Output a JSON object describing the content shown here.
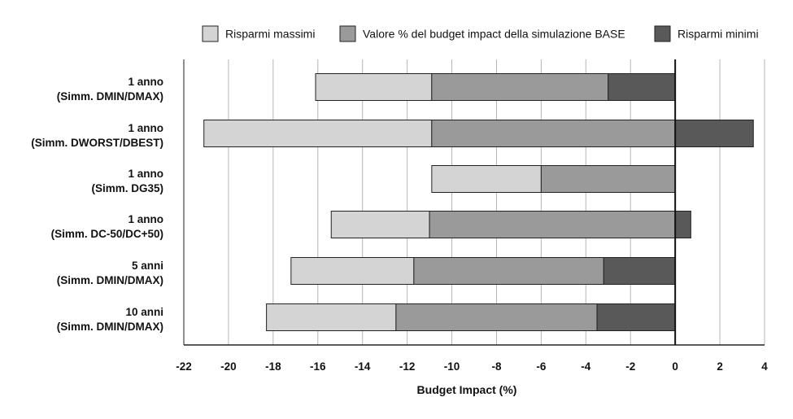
{
  "chart_data": {
    "type": "bar",
    "orientation": "horizontal",
    "stacked": true,
    "title": "",
    "xlabel": "Budget Impact (%)",
    "ylabel": "",
    "xlim": [
      -22,
      4
    ],
    "xticks": [
      -22,
      -20,
      -18,
      -16,
      -14,
      -12,
      -10,
      -8,
      -6,
      -4,
      -2,
      0,
      2,
      4
    ],
    "grid": true,
    "legend_position": "top",
    "categories": [
      [
        "1 anno",
        "(Simm. DMIN/DMAX)"
      ],
      [
        "1 anno",
        "(Simm. DWORST/DBEST)"
      ],
      [
        "1 anno",
        "(Simm. DG35)"
      ],
      [
        "1 anno",
        "(Simm. DC-50/DC+50)"
      ],
      [
        "5 anni",
        "(Simm. DMIN/DMAX)"
      ],
      [
        "10 anni",
        "(Simm. DMIN/DMAX)"
      ]
    ],
    "series": [
      {
        "name": "Risparmi massimi",
        "color": "#d4d4d4",
        "ranges": [
          [
            -16.1,
            -10.9
          ],
          [
            -21.1,
            -10.9
          ],
          [
            -10.9,
            -6.0
          ],
          [
            -15.4,
            -11.0
          ],
          [
            -17.2,
            -11.7
          ],
          [
            -18.3,
            -12.5
          ]
        ]
      },
      {
        "name": "Valore % del budget impact della simulazione BASE",
        "color": "#9a9a9a",
        "ranges": [
          [
            -10.9,
            -3.0
          ],
          [
            -10.9,
            0.0
          ],
          [
            -6.0,
            0.0
          ],
          [
            -11.0,
            0.0
          ],
          [
            -11.7,
            -3.2
          ],
          [
            -12.5,
            -3.5
          ]
        ]
      },
      {
        "name": "Risparmi minimi",
        "color": "#595959",
        "ranges": [
          [
            -3.0,
            0.0
          ],
          [
            0.0,
            3.5
          ],
          null,
          [
            0.0,
            0.7
          ],
          [
            -3.2,
            0.0
          ],
          [
            -3.5,
            0.0
          ]
        ]
      }
    ]
  }
}
